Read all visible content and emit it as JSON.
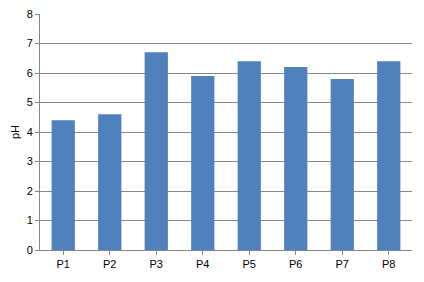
{
  "chart_data": {
    "type": "bar",
    "y_label": "pH",
    "categories": [
      "P1",
      "P2",
      "P3",
      "P4",
      "P5",
      "P6",
      "P7",
      "P8"
    ],
    "values": [
      4.4,
      4.6,
      6.7,
      5.9,
      6.4,
      6.2,
      5.8,
      6.4
    ],
    "color": "#4f81bd",
    "ylim": [
      0,
      8
    ],
    "yticks": [
      0,
      1,
      2,
      3,
      4,
      5,
      6,
      7,
      8
    ],
    "grid": true
  }
}
